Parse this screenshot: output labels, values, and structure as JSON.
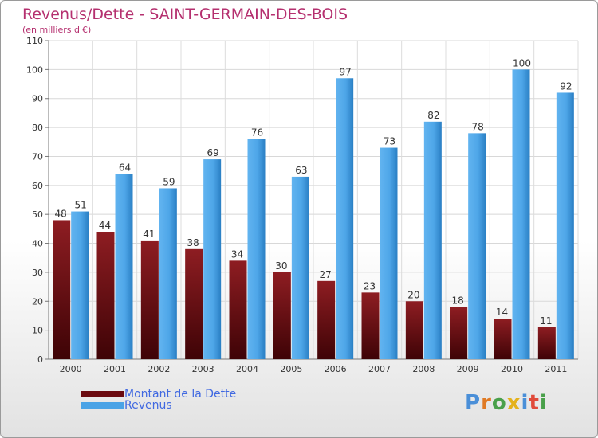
{
  "title": "Revenus/Dette - SAINT-GERMAIN-DES-BOIS",
  "subtitle": "(en milliers d'€)",
  "legend": {
    "items": [
      {
        "label": "Montant de la Dette",
        "color": "#7a0f14"
      },
      {
        "label": "Revenus",
        "color": "#4aa3e6"
      }
    ]
  },
  "logo": {
    "text": "Proxiti"
  },
  "chart_data": {
    "type": "bar",
    "title": "Revenus/Dette - SAINT-GERMAIN-DES-BOIS",
    "subtitle": "(en milliers d'€)",
    "categories": [
      "2000",
      "2001",
      "2002",
      "2003",
      "2004",
      "2005",
      "2006",
      "2007",
      "2008",
      "2009",
      "2010",
      "2011"
    ],
    "series": [
      {
        "name": "Montant de la Dette",
        "color": "#7a0f14",
        "values": [
          48,
          44,
          41,
          38,
          34,
          30,
          27,
          23,
          20,
          18,
          14,
          11
        ]
      },
      {
        "name": "Revenus",
        "color": "#4aa3e6",
        "values": [
          51,
          64,
          59,
          69,
          76,
          63,
          97,
          73,
          82,
          78,
          100,
          92
        ]
      }
    ],
    "ylim": [
      0,
      110
    ],
    "yticks": [
      0,
      10,
      20,
      30,
      40,
      50,
      60,
      70,
      80,
      90,
      100,
      110
    ],
    "grid": true,
    "legend_position": "bottom-left"
  }
}
